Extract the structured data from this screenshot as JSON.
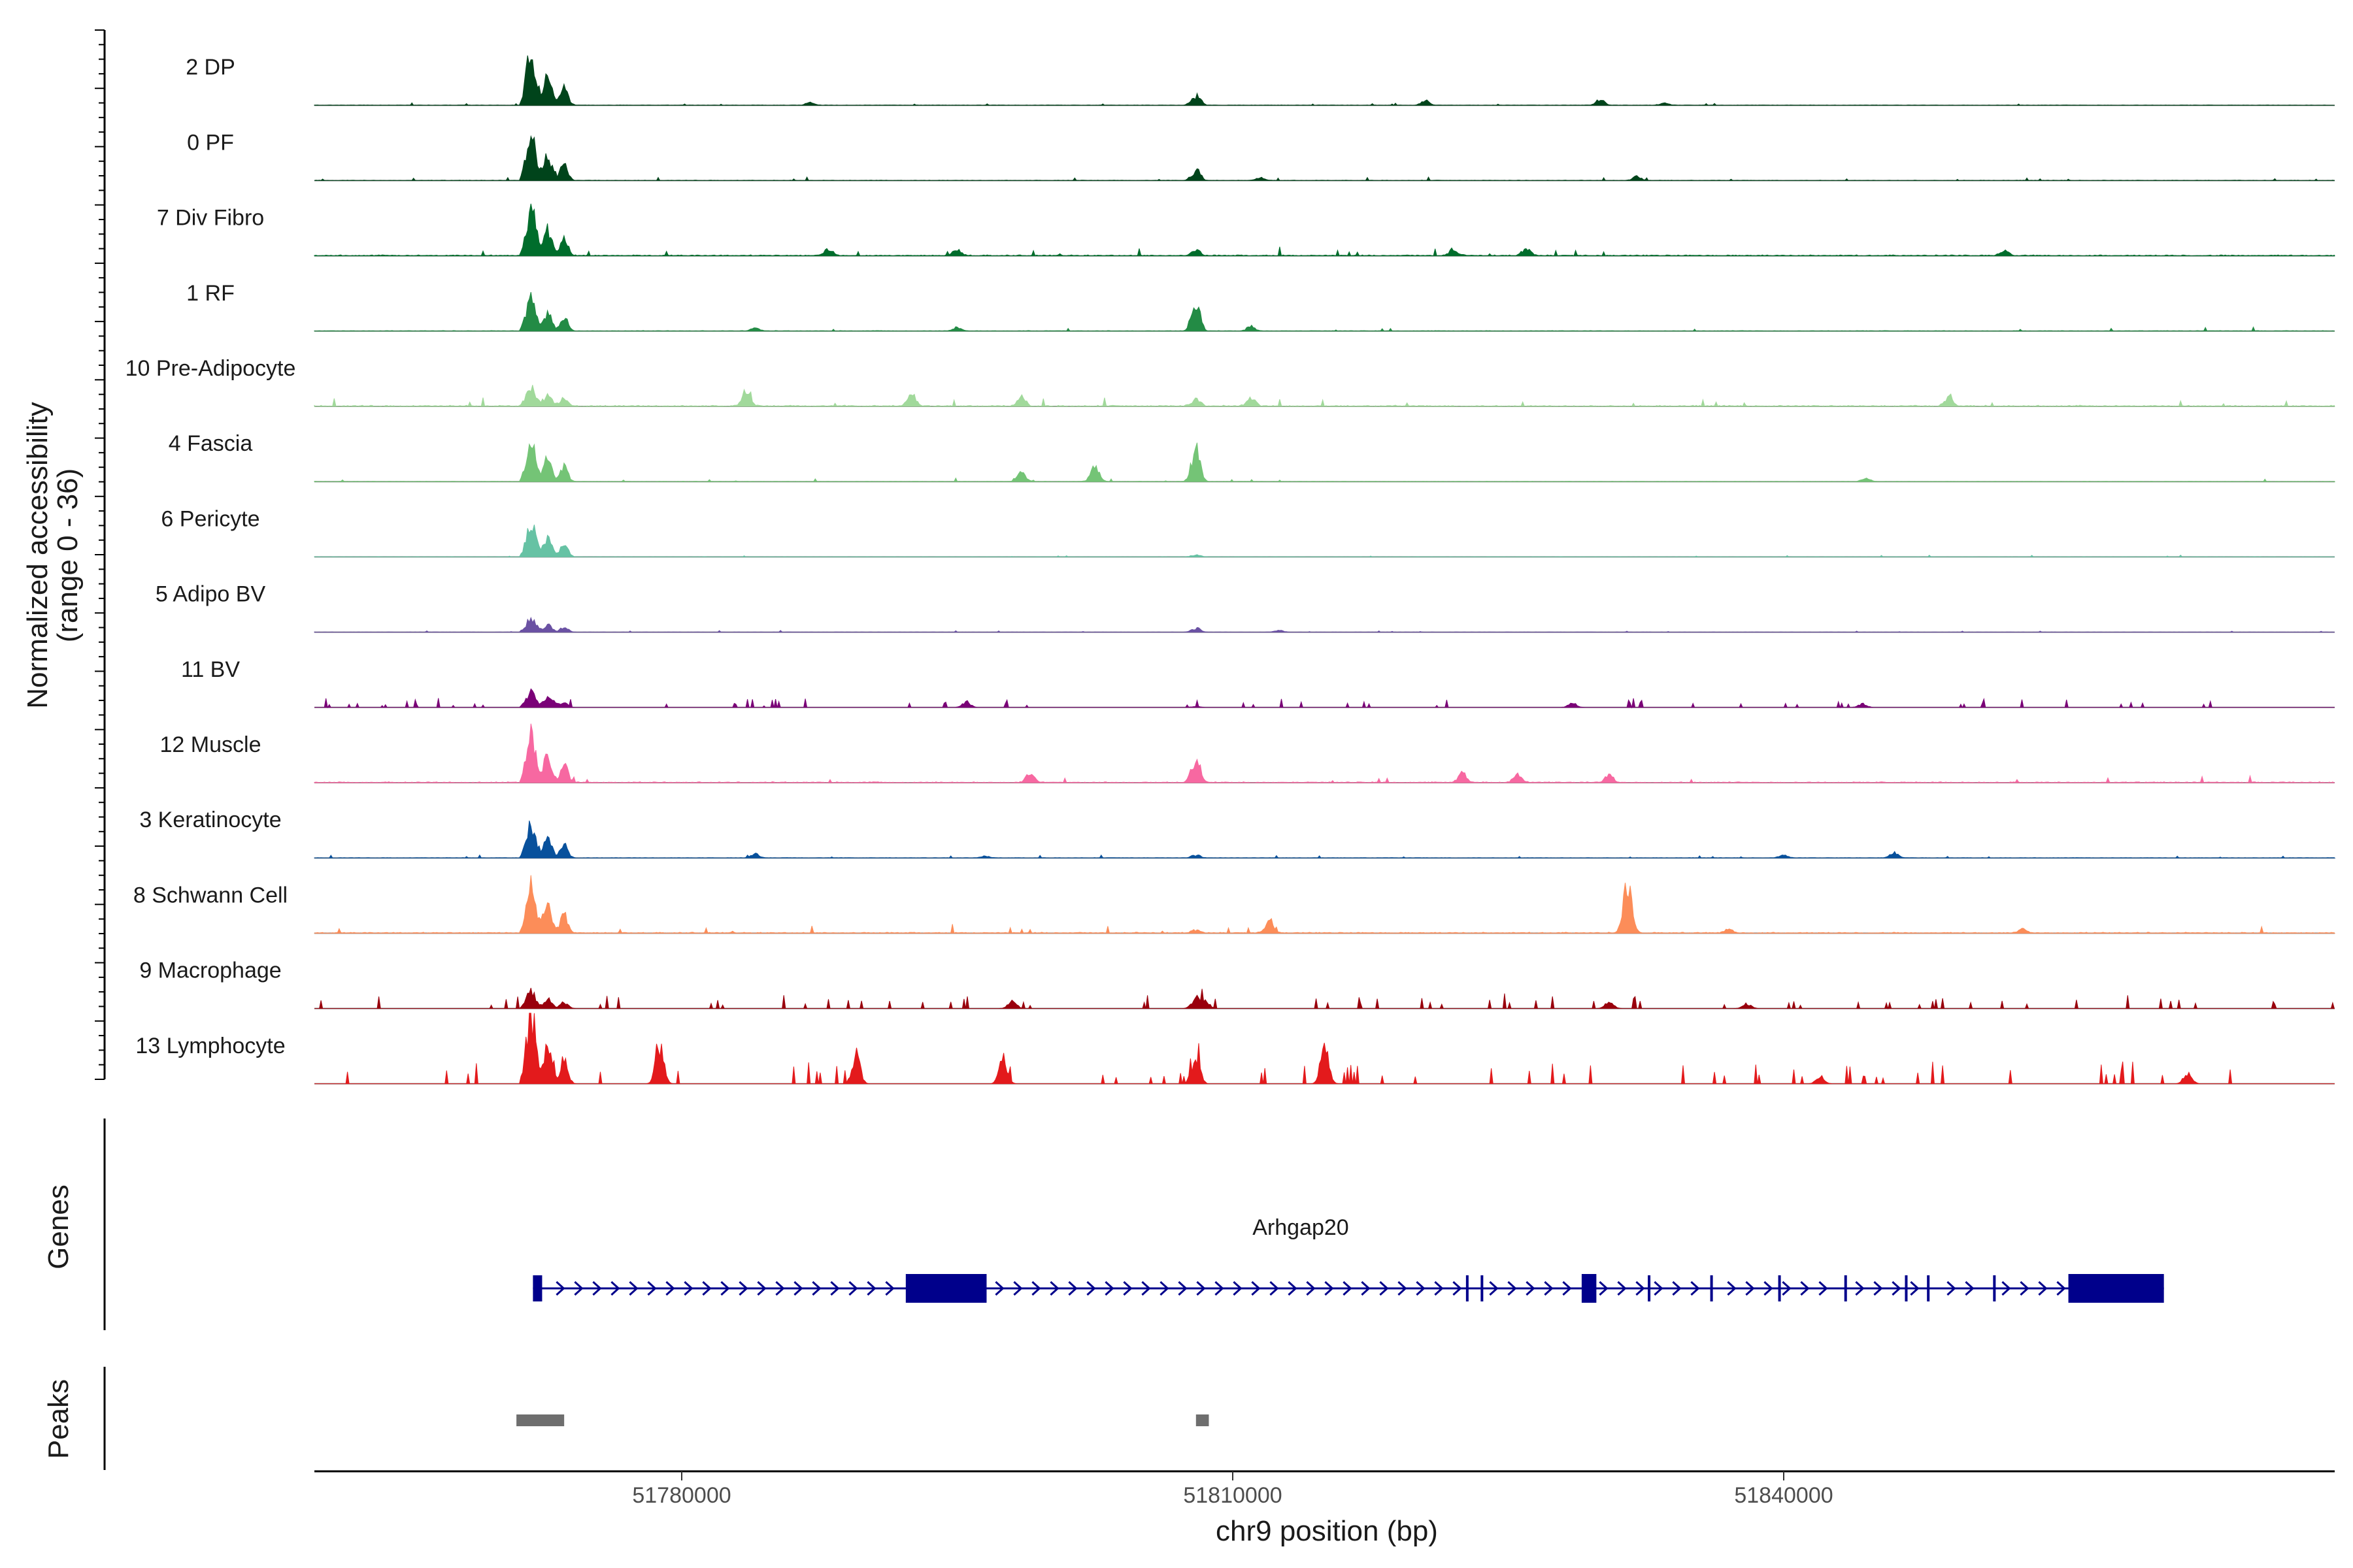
{
  "chart_data": {
    "type": "coverage-track",
    "region": {
      "chrom": "chr9",
      "start": 51760000,
      "end": 51870000
    },
    "xlabel": "chr9 position (bp)",
    "x_ticks": [
      51780000,
      51810000,
      51840000
    ],
    "x_tick_labels": [
      "51780000",
      "51810000",
      "51840000"
    ],
    "ylabel_line1": "Normalized accessibility",
    "ylabel_line2": "(range 0 - 36)",
    "yrange": [
      0,
      36
    ],
    "peak_sites": {
      "main_start": 51771500,
      "main_end": 51774200,
      "mid": 51808100,
      "downstream": 51831500,
      "late": 51846300,
      "div_start": 51779000,
      "div_end": 51855000,
      "lym_cluster_start": 51778200,
      "lym_cluster_end": 51780200
    },
    "tracks": [
      {
        "name": "2 DP",
        "color": "#00441b",
        "main": 28,
        "mid": 5,
        "extra": [
          [
            51787000,
            1.5
          ],
          [
            51820500,
            2.4
          ],
          [
            51830000,
            3.0
          ],
          [
            51833500,
            1.5
          ]
        ],
        "bg": 0.5,
        "sparse": false
      },
      {
        "name": "0 PF",
        "color": "#00441b",
        "main": 24,
        "mid": 5,
        "extra": [
          [
            51811500,
            1.5
          ],
          [
            51832000,
            2.2
          ]
        ],
        "bg": 0.6,
        "sparse": false
      },
      {
        "name": "7 Div Fibro",
        "color": "#006d2c",
        "main": 25,
        "mid": 2.5,
        "extra": [
          [
            51788000,
            3.5
          ],
          [
            51795000,
            3.0
          ],
          [
            51822000,
            3.5
          ],
          [
            51826000,
            4.0
          ],
          [
            51852000,
            2.5
          ]
        ],
        "bg": 1.3,
        "sparse": false
      },
      {
        "name": "1 RF",
        "color": "#238b45",
        "main": 18,
        "mid": 14,
        "extra": [
          [
            51784000,
            2.0
          ],
          [
            51795000,
            2.0
          ],
          [
            51811000,
            2.5
          ]
        ],
        "bg": 0.7,
        "sparse": false
      },
      {
        "name": "10 Pre-Adipocyte",
        "color": "#a1d99b",
        "main": 10,
        "mid": 3.5,
        "extra": [
          [
            51783500,
            8.0
          ],
          [
            51792500,
            7.0
          ],
          [
            51798500,
            5.0
          ],
          [
            51811000,
            4.0
          ],
          [
            51849000,
            4.5
          ]
        ],
        "bg": 1.5,
        "sparse": false
      },
      {
        "name": "4 Fascia",
        "color": "#74c476",
        "main": 22,
        "mid": 16,
        "extra": [
          [
            51798500,
            5.0
          ],
          [
            51802500,
            8.0
          ],
          [
            51844500,
            2.0
          ]
        ],
        "bg": 0.5,
        "sparse": false
      },
      {
        "name": "6 Pericyte",
        "color": "#66c2a4",
        "main": 18,
        "mid": 1.0,
        "extra": [],
        "bg": 0.3,
        "sparse": false
      },
      {
        "name": "5 Adipo BV",
        "color": "#6a51a3",
        "main": 7,
        "mid": 2.0,
        "extra": [
          [
            51812500,
            1.0
          ]
        ],
        "bg": 0.3,
        "sparse": false
      },
      {
        "name": "11 BV",
        "color": "#7a0177",
        "main": 8,
        "mid": 0.5,
        "extra": [
          [
            51773000,
            2.0
          ],
          [
            51795500,
            3.0
          ],
          [
            51828500,
            2.5
          ],
          [
            51844300,
            2.0
          ]
        ],
        "bg": 1.2,
        "sparse": true
      },
      {
        "name": "12 Muscle",
        "color": "#f768a1",
        "main": 25,
        "mid": 12,
        "extra": [
          [
            51799000,
            5.0
          ],
          [
            51822500,
            5.0
          ],
          [
            51825500,
            4.5
          ],
          [
            51830500,
            4.0
          ]
        ],
        "bg": 1.2,
        "sparse": false
      },
      {
        "name": "3 Keratinocyte",
        "color": "#08519c",
        "main": 18,
        "mid": 1.5,
        "extra": [
          [
            51784000,
            2.0
          ],
          [
            51796500,
            1.0
          ],
          [
            51840000,
            1.5
          ],
          [
            51846000,
            3.0
          ]
        ],
        "bg": 0.5,
        "sparse": false
      },
      {
        "name": "8 Schwann Cell",
        "color": "#fc8d59",
        "main": 27,
        "mid": 1.5,
        "extra": [
          [
            51812000,
            7.0
          ],
          [
            51831500,
            28.0
          ],
          [
            51837000,
            2.0
          ],
          [
            51853000,
            2.0
          ]
        ],
        "bg": 1.3,
        "sparse": false
      },
      {
        "name": "9 Macrophage",
        "color": "#99000d",
        "main": 9,
        "mid": 5,
        "extra": [
          [
            51798000,
            4.0
          ],
          [
            51808500,
            4.0
          ],
          [
            51830500,
            3.5
          ],
          [
            51838000,
            2.5
          ]
        ],
        "bg": 2.0,
        "sparse": true
      },
      {
        "name": "13 Lymphocyte",
        "color": "#e31a1c",
        "main": 36,
        "mid": 12,
        "extra": [
          [
            51778800,
            20.0
          ],
          [
            51789500,
            14.0
          ],
          [
            51797500,
            14.0
          ],
          [
            51815000,
            20.0
          ],
          [
            51842000,
            4.0
          ],
          [
            51862000,
            6.0
          ]
        ],
        "bg": 3.0,
        "sparse": true
      }
    ],
    "genes": {
      "label": "Genes",
      "name": "Arhgap20",
      "strand": "+",
      "start": 51771900,
      "end": 51860700,
      "exons": [
        [
          51771900,
          51772400
        ],
        [
          51792200,
          51796600
        ],
        [
          51822700,
          51822800
        ],
        [
          51823500,
          51823600
        ],
        [
          51829000,
          51829800
        ],
        [
          51832600,
          51832700
        ],
        [
          51836000,
          51836100
        ],
        [
          51839700,
          51839800
        ],
        [
          51843300,
          51843400
        ],
        [
          51846600,
          51846700
        ],
        [
          51847800,
          51847900
        ],
        [
          51851400,
          51851500
        ],
        [
          51855500,
          51860700
        ]
      ],
      "color": "#00008b"
    },
    "peaks": {
      "label": "Peaks",
      "ranges": [
        [
          51771000,
          51773600
        ],
        [
          51808000,
          51808700
        ]
      ],
      "color": "#6e6e6e"
    }
  }
}
